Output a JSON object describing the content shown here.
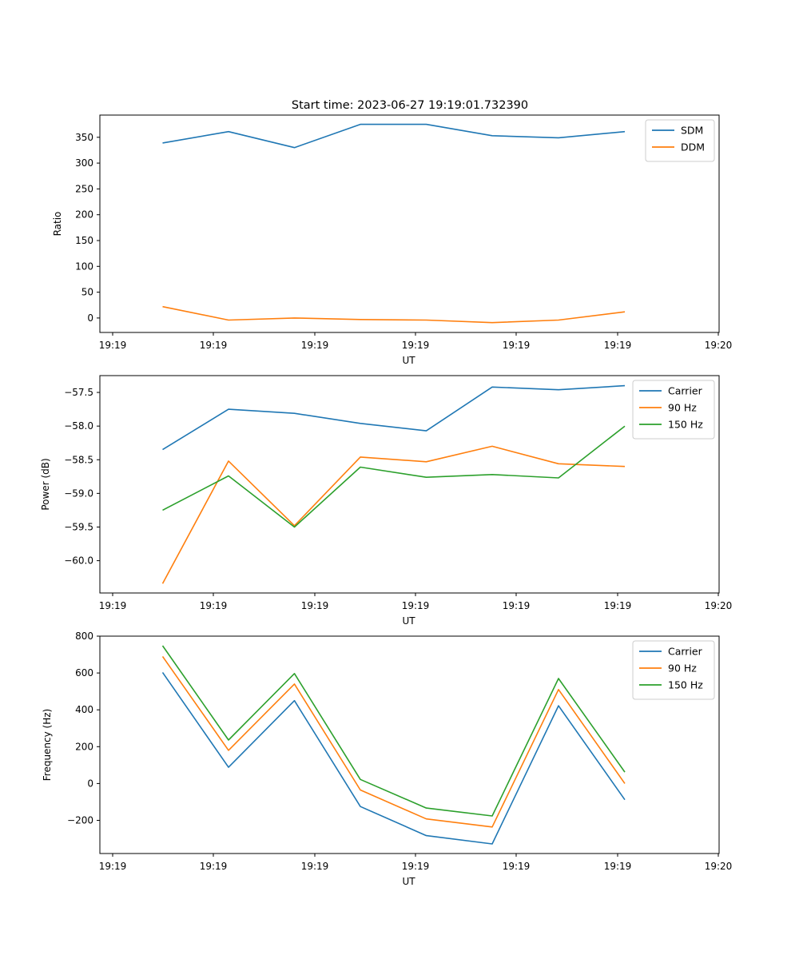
{
  "title": "Start time: 2023-06-27 19:19:01.732390",
  "chart_data": [
    {
      "type": "line",
      "xlabel": "UT",
      "ylabel": "Ratio",
      "x_ticks": [
        "19:19",
        "19:19",
        "19:19",
        "19:19",
        "19:19",
        "19:19",
        "19:20"
      ],
      "ylim": [
        -28,
        393
      ],
      "y_ticks": [
        0,
        50,
        100,
        150,
        200,
        250,
        300,
        350
      ],
      "y_tick_labels": [
        "0",
        "50",
        "100",
        "150",
        "200",
        "250",
        "300",
        "350"
      ],
      "legend_position": "top-right",
      "series": [
        {
          "name": "SDM",
          "color": "#1f77b4",
          "values": [
            339,
            361,
            330,
            375,
            375,
            353,
            349,
            361
          ]
        },
        {
          "name": "DDM",
          "color": "#ff7f0e",
          "values": [
            22,
            -4,
            0,
            -3,
            -4,
            -9,
            -4,
            12
          ]
        }
      ]
    },
    {
      "type": "line",
      "xlabel": "UT",
      "ylabel": "Power (dB)",
      "x_ticks": [
        "19:19",
        "19:19",
        "19:19",
        "19:19",
        "19:19",
        "19:19",
        "19:20"
      ],
      "ylim": [
        -60.48,
        -57.25
      ],
      "y_ticks": [
        -60.0,
        -59.5,
        -59.0,
        -58.5,
        -58.0,
        -57.5
      ],
      "y_tick_labels": [
        "−60.0",
        "−59.5",
        "−59.0",
        "−58.5",
        "−58.0",
        "−57.5"
      ],
      "legend_position": "top-right",
      "series": [
        {
          "name": "Carrier",
          "color": "#1f77b4",
          "values": [
            -58.35,
            -57.75,
            -57.81,
            -57.96,
            -58.07,
            -57.42,
            -57.46,
            -57.4
          ]
        },
        {
          "name": "90 Hz",
          "color": "#ff7f0e",
          "values": [
            -60.34,
            -58.52,
            -59.48,
            -58.46,
            -58.53,
            -58.3,
            -58.56,
            -58.6
          ]
        },
        {
          "name": "150 Hz",
          "color": "#2ca02c",
          "values": [
            -59.25,
            -58.74,
            -59.5,
            -58.61,
            -58.76,
            -58.72,
            -58.77,
            -58.0
          ]
        }
      ]
    },
    {
      "type": "line",
      "xlabel": "UT",
      "ylabel": "Frequency (Hz)",
      "x_ticks": [
        "19:19",
        "19:19",
        "19:19",
        "19:19",
        "19:19",
        "19:19",
        "19:20"
      ],
      "ylim": [
        -380,
        800
      ],
      "y_ticks": [
        -200,
        0,
        200,
        400,
        600,
        800
      ],
      "y_tick_labels": [
        "−200",
        "0",
        "200",
        "400",
        "600",
        "800"
      ],
      "legend_position": "top-right",
      "series": [
        {
          "name": "Carrier",
          "color": "#1f77b4",
          "values": [
            603,
            88,
            450,
            -125,
            -283,
            -328,
            422,
            -88
          ]
        },
        {
          "name": "90 Hz",
          "color": "#ff7f0e",
          "values": [
            690,
            180,
            540,
            -35,
            -192,
            -236,
            510,
            0
          ]
        },
        {
          "name": "150 Hz",
          "color": "#2ca02c",
          "values": [
            748,
            236,
            597,
            22,
            -133,
            -176,
            570,
            62
          ]
        }
      ]
    }
  ]
}
